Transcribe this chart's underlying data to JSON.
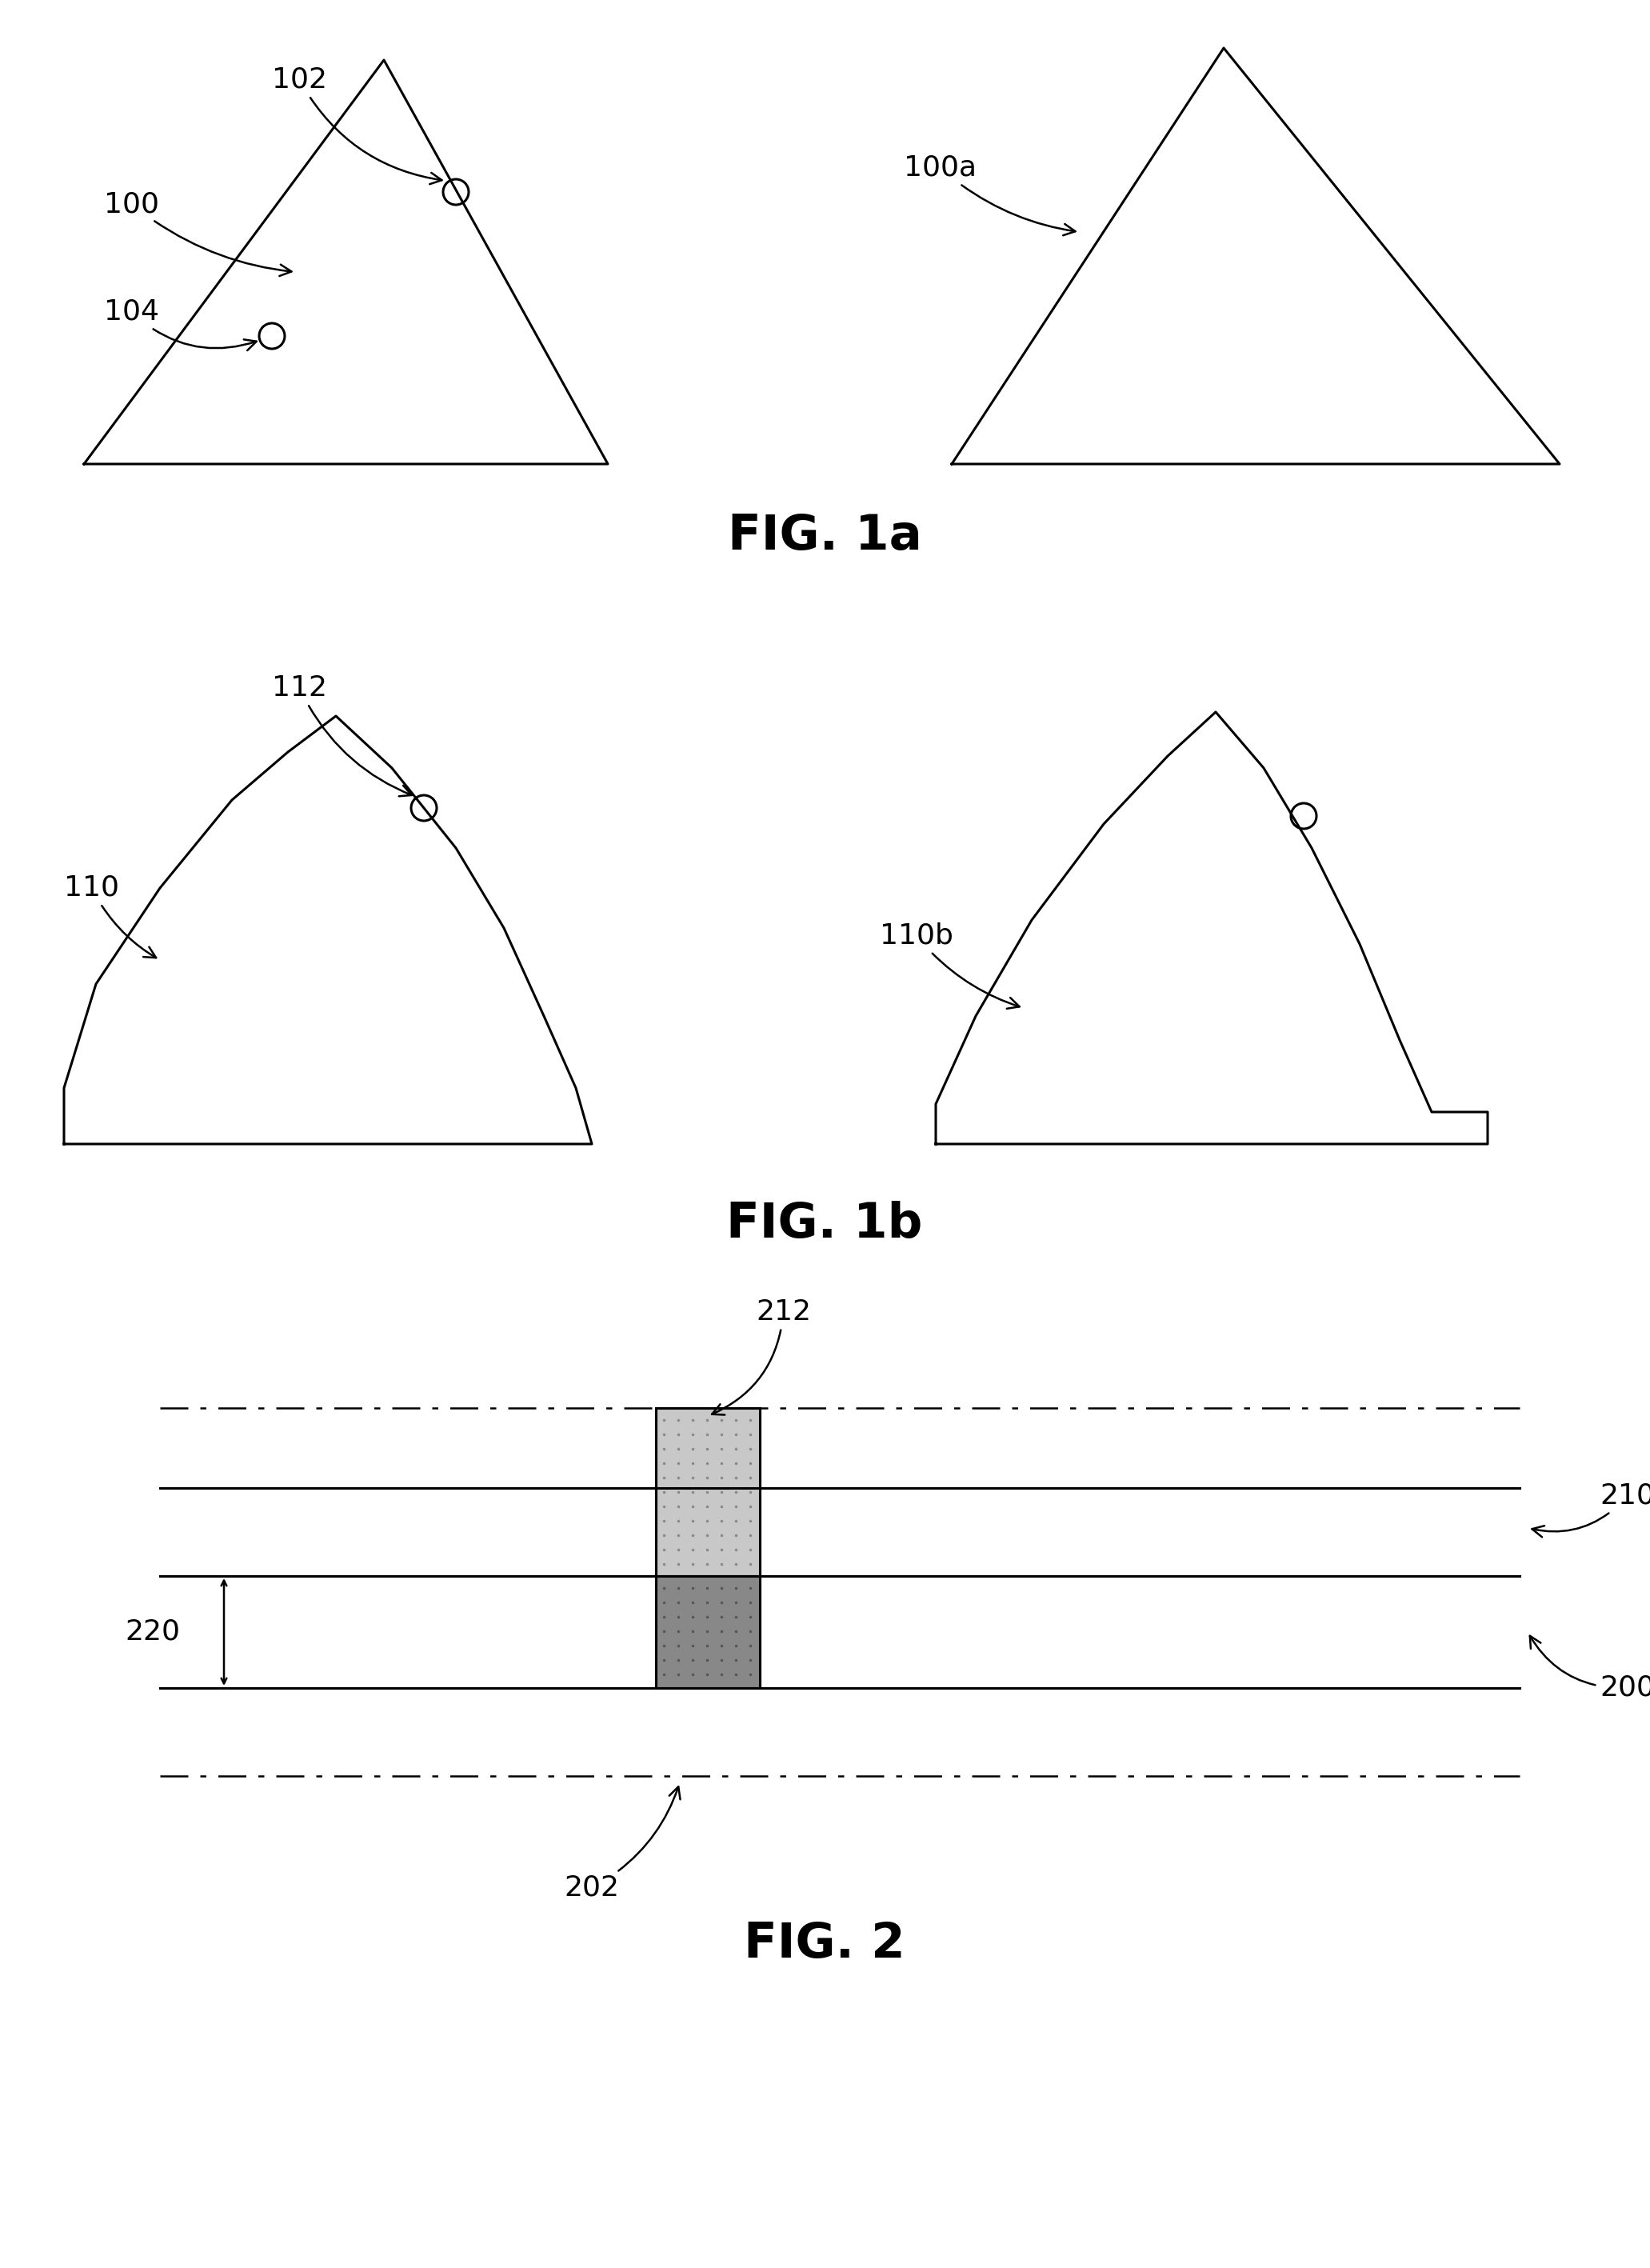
{
  "bg_color": "#ffffff",
  "line_color": "#000000",
  "fig1a_title": "FIG. 1a",
  "fig1b_title": "FIG. 1b",
  "fig2_title": "FIG. 2",
  "annotation_fontsize": 26,
  "caption_fontsize": 44,
  "lw": 2.2
}
